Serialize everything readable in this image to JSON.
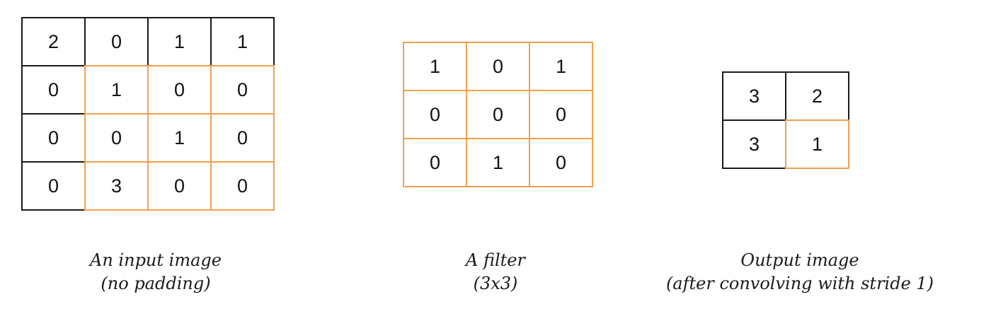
{
  "colors": {
    "black": "#1a1a1a",
    "orange": "#f0a050"
  },
  "input_image": {
    "values": [
      [
        "2",
        "0",
        "1",
        "1"
      ],
      [
        "0",
        "1",
        "0",
        "0"
      ],
      [
        "0",
        "0",
        "1",
        "0"
      ],
      [
        "0",
        "3",
        "0",
        "0"
      ]
    ],
    "highlight": [
      [
        false,
        false,
        false,
        false
      ],
      [
        false,
        true,
        true,
        true
      ],
      [
        false,
        true,
        true,
        true
      ],
      [
        false,
        true,
        true,
        true
      ]
    ],
    "caption_line1": "An input image",
    "caption_line2": "(no padding)"
  },
  "filter": {
    "values": [
      [
        "1",
        "0",
        "1"
      ],
      [
        "0",
        "0",
        "0"
      ],
      [
        "0",
        "1",
        "0"
      ]
    ],
    "highlight": [
      [
        true,
        true,
        true
      ],
      [
        true,
        true,
        true
      ],
      [
        true,
        true,
        true
      ]
    ],
    "caption_line1": "A filter",
    "caption_line2": "(3x3)"
  },
  "output_image": {
    "values": [
      [
        "3",
        "2"
      ],
      [
        "3",
        "1"
      ]
    ],
    "highlight": [
      [
        false,
        false
      ],
      [
        false,
        true
      ]
    ],
    "caption_line1": "Output image",
    "caption_line2": "(after convolving with stride 1)"
  }
}
